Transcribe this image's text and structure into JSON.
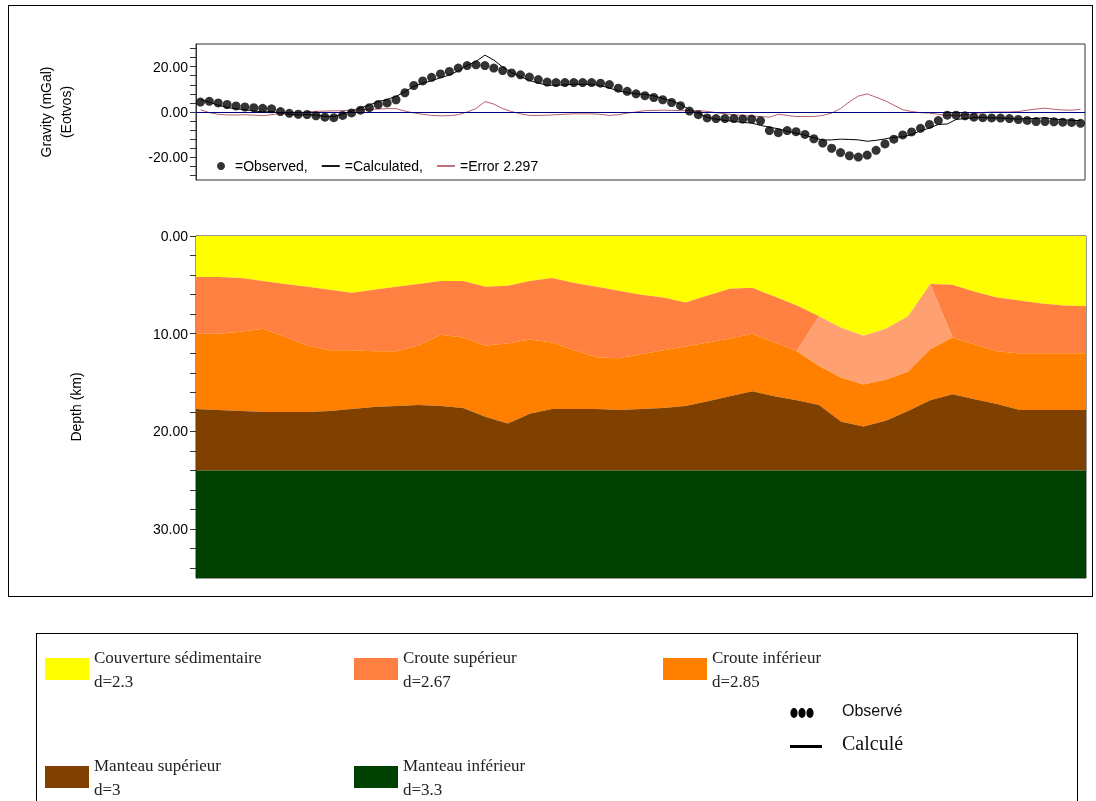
{
  "chart_data": [
    {
      "type": "scatter",
      "ylabel": "Gravity (mGal)\n(Eotvos)",
      "ylim": [
        -30,
        30
      ],
      "yticks": [
        {
          "value": -28,
          "label": null
        },
        {
          "value": -24,
          "label": null
        },
        {
          "value": -20,
          "label": "-20.00"
        },
        {
          "value": -16,
          "label": null
        },
        {
          "value": -12,
          "label": null
        },
        {
          "value": -8,
          "label": null
        },
        {
          "value": -4,
          "label": null
        },
        {
          "value": 0,
          "label": "0.00"
        },
        {
          "value": 4,
          "label": null
        },
        {
          "value": 8,
          "label": null
        },
        {
          "value": 12,
          "label": null
        },
        {
          "value": 16,
          "label": null
        },
        {
          "value": 20,
          "label": "20.00"
        },
        {
          "value": 24,
          "label": null
        },
        {
          "value": 28,
          "label": null
        }
      ],
      "categories": [
        null,
        null,
        null,
        null,
        null,
        null,
        null,
        null,
        null,
        null,
        null,
        null,
        null,
        null,
        null,
        null,
        null,
        null,
        null,
        null,
        null,
        null,
        null,
        null,
        null,
        null,
        null,
        null,
        null,
        null,
        null,
        null,
        null,
        null,
        null,
        null,
        null,
        null,
        null,
        null,
        null,
        null,
        null,
        null,
        null,
        null,
        null,
        null,
        null,
        null,
        null,
        null,
        null,
        null,
        null,
        null,
        null,
        null,
        null,
        null,
        null,
        null,
        null,
        null,
        null,
        null,
        null,
        null,
        null,
        null,
        null,
        null,
        null,
        null,
        null,
        null,
        null,
        null,
        null,
        null,
        null,
        null,
        null,
        null,
        null,
        null,
        null,
        null,
        null,
        null,
        null,
        null,
        null,
        null,
        null,
        null,
        null,
        null,
        null,
        null
      ],
      "tick_labels": "y",
      "grid": false,
      "legend": "bottom left",
      "ref_lines": [
        {
          "axis": "y",
          "value": 0,
          "label": null,
          "color": "#000080"
        }
      ],
      "series": [
        {
          "name": "=Observed,",
          "type": "scatter",
          "color": "#000000",
          "values": [
            4.4,
            4.7,
            4.0,
            3.3,
            2.7,
            2.2,
            1.9,
            1.6,
            1.4,
            0.2,
            -0.6,
            -1.0,
            -1.1,
            -1.7,
            -2.3,
            -2.5,
            -1.5,
            -0.4,
            0.8,
            1.9,
            3.3,
            4.0,
            5.4,
            8.5,
            11.7,
            13.7,
            15.3,
            16.8,
            17.9,
            19.4,
            20.5,
            20.8,
            20.5,
            19.4,
            18.3,
            17.2,
            16.4,
            15.4,
            14.3,
            13.2,
            13.0,
            13.0,
            13.0,
            13.0,
            13.0,
            12.7,
            12.1,
            10.5,
            9.1,
            8.0,
            7.2,
            6.4,
            5.4,
            4.2,
            2.8,
            0.4,
            -1.2,
            -2.6,
            -2.9,
            -2.9,
            -2.9,
            -3.1,
            -3.1,
            -3.9,
            -8.2,
            -9.1,
            -8.2,
            -8.7,
            -9.9,
            -11.8,
            -13.7,
            -16.0,
            -17.9,
            -19.3,
            -19.9,
            -19.0,
            -16.9,
            -14.1,
            -12.0,
            -10.1,
            -8.8,
            -7.2,
            -5.5,
            -3.8,
            -1.4,
            -1.4,
            -1.7,
            -2.3,
            -2.5,
            -2.6,
            -2.7,
            -2.9,
            -3.3,
            -3.7,
            -4.2,
            -4.2,
            -4.3,
            -4.5,
            -4.6,
            -5.0
          ]
        },
        {
          "name": "=Calculated,",
          "type": "line",
          "color": "#000000",
          "values": [
            5.4,
            4.4,
            3.0,
            2.0,
            1.4,
            1.0,
            0.5,
            0.0,
            0.2,
            -0.5,
            -1.1,
            -1.3,
            -1.1,
            -1.4,
            -1.9,
            -2.0,
            -0.9,
            0.4,
            1.8,
            3.1,
            4.6,
            5.5,
            6.9,
            8.9,
            11.3,
            12.7,
            13.8,
            15.1,
            16.3,
            18.2,
            20.5,
            22.3,
            25.1,
            22.9,
            19.8,
            17.4,
            15.6,
            13.9,
            12.8,
            11.8,
            11.8,
            12.0,
            12.2,
            12.2,
            12.2,
            11.7,
            10.6,
            9.3,
            8.6,
            8.0,
            7.8,
            7.1,
            6.0,
            4.9,
            3.4,
            1.0,
            -0.6,
            -2.3,
            -3.2,
            -3.7,
            -4.1,
            -4.6,
            -4.9,
            -5.9,
            -6.7,
            -7.4,
            -8.5,
            -9.4,
            -10.2,
            -11.4,
            -12.4,
            -12.3,
            -12.0,
            -12.1,
            -12.3,
            -12.9,
            -12.5,
            -11.9,
            -11.1,
            -11.0,
            -9.9,
            -8.3,
            -7.1,
            -5.5,
            -5.3,
            -3.3,
            -2.9,
            -2.5,
            -2.5,
            -2.6,
            -2.7,
            -2.9,
            -3.1,
            -2.9,
            -2.9,
            -2.5,
            -3.1,
            -3.4,
            -3.7,
            -3.8
          ]
        },
        {
          "name": "=Error 2.297",
          "type": "line",
          "color": "#b8606e",
          "values": [
            1.0,
            -0.3,
            -1.0,
            -1.3,
            -1.3,
            -1.2,
            -1.4,
            -1.6,
            -1.2,
            -0.7,
            -0.5,
            -0.3,
            0.0,
            0.3,
            0.4,
            0.5,
            0.6,
            0.8,
            1.0,
            1.2,
            1.3,
            1.5,
            1.5,
            0.4,
            -0.4,
            -1.0,
            -1.5,
            -1.7,
            -1.6,
            -1.2,
            0.0,
            1.5,
            4.6,
            3.5,
            1.5,
            0.2,
            -0.8,
            -1.5,
            -1.5,
            -1.4,
            -1.2,
            -1.0,
            -0.8,
            -0.8,
            -0.8,
            -1.0,
            -1.5,
            -1.2,
            -0.5,
            0.0,
            0.6,
            0.7,
            0.8,
            0.7,
            0.6,
            0.6,
            0.6,
            0.3,
            -0.3,
            -0.8,
            -1.2,
            -1.5,
            -1.8,
            -2.0,
            -2.3,
            -1.0,
            -1.5,
            -2.0,
            -2.0,
            -2.0,
            -1.5,
            -0.5,
            1.5,
            4.5,
            7.0,
            8.0,
            6.5,
            5.0,
            3.0,
            1.0,
            0.2,
            -0.3,
            -0.5,
            -1.0,
            -1.5,
            -1.5,
            -1.2,
            -0.8,
            -0.2,
            0.0,
            0.0,
            0.0,
            0.2,
            0.8,
            1.3,
            1.7,
            1.2,
            0.9,
            0.8,
            1.2
          ]
        }
      ]
    },
    {
      "type": "area",
      "ylabel": "Depth (km)",
      "ylim": [
        35,
        0
      ],
      "stacked": true,
      "tick_labels": "y",
      "grid": false,
      "legend": "bottom",
      "yticks": [
        {
          "value": 0,
          "label": "0.00"
        },
        {
          "value": 2,
          "label": null
        },
        {
          "value": 4,
          "label": null
        },
        {
          "value": 6,
          "label": null
        },
        {
          "value": 8,
          "label": null
        },
        {
          "value": 10,
          "label": "10.00"
        },
        {
          "value": 12,
          "label": null
        },
        {
          "value": 14,
          "label": null
        },
        {
          "value": 16,
          "label": null
        },
        {
          "value": 18,
          "label": null
        },
        {
          "value": 20,
          "label": "20.00"
        },
        {
          "value": 22,
          "label": null
        },
        {
          "value": 24,
          "label": null
        },
        {
          "value": 26,
          "label": null
        },
        {
          "value": 28,
          "label": null
        },
        {
          "value": 30,
          "label": "30.00"
        },
        {
          "value": 32,
          "label": null
        },
        {
          "value": 34,
          "label": null
        }
      ],
      "categories": [
        null,
        null,
        null,
        null,
        null,
        null,
        null,
        null,
        null,
        null,
        null,
        null,
        null,
        null,
        null,
        null,
        null,
        null,
        null,
        null,
        null,
        null,
        null,
        null,
        null,
        null,
        null,
        null,
        null,
        null,
        null,
        null,
        null,
        null,
        null,
        null,
        null,
        null,
        null,
        null,
        null
      ],
      "annotations": [
        "Observé",
        "Calculé"
      ],
      "series": [
        {
          "name": "Couverture sédimentaire\nd=2.3",
          "color": "#ffff00",
          "values": [
            4.2,
            4.2,
            4.3,
            4.6,
            4.9,
            5.2,
            5.5,
            5.8,
            5.5,
            5.2,
            4.9,
            4.6,
            4.6,
            5.2,
            5.1,
            4.6,
            4.3,
            4.8,
            5.2,
            5.6,
            6.0,
            6.3,
            6.8,
            6.1,
            5.4,
            5.3,
            6.2,
            7.1,
            8.2,
            9.4,
            10.2,
            9.5,
            8.2,
            4.9,
            5.0,
            5.7,
            6.3,
            6.6,
            6.9,
            7.1,
            7.2
          ]
        },
        {
          "name": "Croute supérieur\nd=2.67",
          "color": "#ff8040",
          "values": [
            5.8,
            5.8,
            5.5,
            4.9,
            5.4,
            6.0,
            6.2,
            5.9,
            6.3,
            6.6,
            6.3,
            5.5,
            5.8,
            6.0,
            5.9,
            6.0,
            6.6,
            6.9,
            7.2,
            6.9,
            6.1,
            5.4,
            4.5,
            4.8,
            5.1,
            4.7,
            4.7,
            4.7,
            0,
            0,
            0,
            0,
            0,
            0,
            5.4,
            5.4,
            5.5,
            5.4,
            5.1,
            4.9,
            4.8
          ]
        },
        {
          "color": "#ffa070",
          "values": [
            0,
            0,
            0,
            0,
            0,
            0,
            0,
            0,
            0,
            0,
            0,
            0,
            0,
            0,
            0,
            0,
            0,
            0,
            0,
            0,
            0,
            0,
            0,
            0,
            0,
            0,
            0,
            0,
            5.1,
            5.1,
            5.0,
            5.2,
            5.7,
            6.7,
            0,
            0,
            0,
            0,
            0,
            0,
            0
          ]
        },
        {
          "name": "Croute inférieur\nd=2.85",
          "color": "#ff8000",
          "values": [
            7.7,
            7.8,
            8.1,
            8.5,
            7.7,
            6.8,
            6.2,
            6.0,
            5.7,
            5.6,
            6.1,
            7.3,
            7.2,
            7.3,
            8.2,
            7.6,
            6.8,
            6.0,
            5.3,
            5.3,
            5.6,
            5.9,
            6.1,
            6.0,
            5.9,
            5.9,
            5.5,
            5.0,
            4.0,
            4.5,
            4.3,
            4.2,
            4.0,
            5.2,
            5.8,
            5.6,
            5.4,
            5.8,
            5.8,
            5.8,
            5.8
          ]
        },
        {
          "name": "Manteau supérieur\nd=3",
          "color": "#804000",
          "values": [
            6.3,
            6.2,
            6.1,
            6.0,
            6.0,
            6.0,
            6.1,
            6.3,
            6.5,
            6.6,
            6.7,
            6.6,
            6.4,
            5.5,
            4.8,
            5.8,
            6.3,
            6.3,
            6.3,
            6.2,
            6.3,
            6.4,
            6.6,
            7.1,
            7.6,
            8.1,
            7.6,
            7.2,
            6.7,
            5.0,
            4.5,
            5.1,
            6.1,
            7.2,
            7.8,
            7.3,
            6.8,
            6.2,
            6.2,
            6.2,
            6.2
          ]
        },
        {
          "name": "Manteau inférieur\nd=3.3",
          "color": "#004000",
          "values": [
            11,
            11,
            11,
            11,
            11,
            11,
            11,
            11,
            11,
            11,
            11,
            11,
            11,
            11,
            11,
            11,
            11,
            11,
            11,
            11,
            11,
            11,
            11,
            11,
            11,
            11,
            11,
            11,
            11,
            11,
            11,
            11,
            11,
            11,
            11,
            11,
            11,
            11,
            11,
            11,
            11
          ]
        }
      ]
    }
  ]
}
